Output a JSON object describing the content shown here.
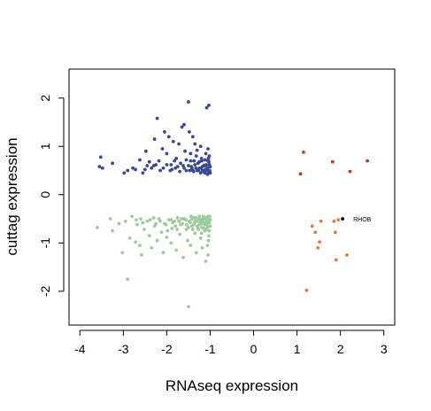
{
  "chart_data": {
    "type": "scatter",
    "title": "",
    "xlabel": "RNAseq expression",
    "ylabel": "cuttag expression",
    "xlim": [
      -4.25,
      3.25
    ],
    "ylim": [
      -2.7,
      2.6
    ],
    "x_ticks": [
      "-4",
      "-3",
      "-2",
      "-1",
      "0",
      "1",
      "2",
      "3"
    ],
    "y_ticks": [
      "-2",
      "-1",
      "0",
      "1",
      "2"
    ],
    "grid": false,
    "legend": "none",
    "series": [
      {
        "color": "#3d4693",
        "points": [
          [
            -3.52,
            0.78
          ],
          [
            -3.55,
            0.58
          ],
          [
            -3.48,
            0.55
          ],
          [
            -3.25,
            0.65
          ],
          [
            -2.98,
            0.45
          ],
          [
            -2.9,
            0.5
          ],
          [
            -2.78,
            0.55
          ],
          [
            -2.72,
            0.52
          ],
          [
            -2.62,
            0.72
          ],
          [
            -2.55,
            0.45
          ],
          [
            -2.48,
            0.9
          ],
          [
            -2.45,
            0.6
          ],
          [
            -2.4,
            0.68
          ],
          [
            -2.35,
            0.55
          ],
          [
            -2.3,
            0.6
          ],
          [
            -2.28,
            1.15
          ],
          [
            -2.22,
            1.58
          ],
          [
            -2.15,
            0.5
          ],
          [
            -2.1,
            0.95
          ],
          [
            -2.05,
            1.3
          ],
          [
            -2.0,
            0.85
          ],
          [
            -1.95,
            1.2
          ],
          [
            -1.92,
            0.5
          ],
          [
            -1.9,
            0.62
          ],
          [
            -1.85,
            1.1
          ],
          [
            -1.8,
            0.55
          ],
          [
            -1.78,
            0.75
          ],
          [
            -1.72,
            1.05
          ],
          [
            -1.7,
            0.48
          ],
          [
            -1.65,
            1.4
          ],
          [
            -1.62,
            0.6
          ],
          [
            -1.6,
            1.45
          ],
          [
            -1.58,
            0.9
          ],
          [
            -1.55,
            0.5
          ],
          [
            -1.5,
            1.92
          ],
          [
            -1.48,
            1.3
          ],
          [
            -1.45,
            0.7
          ],
          [
            -1.42,
            0.55
          ],
          [
            -1.4,
            1.2
          ],
          [
            -1.38,
            0.48
          ],
          [
            -1.35,
            1.05
          ],
          [
            -1.32,
            0.8
          ],
          [
            -1.3,
            0.5
          ],
          [
            -1.28,
            0.65
          ],
          [
            -1.25,
            0.55
          ],
          [
            -1.22,
            1.0
          ],
          [
            -1.2,
            0.75
          ],
          [
            -1.18,
            0.5
          ],
          [
            -1.15,
            0.6
          ],
          [
            -1.12,
            0.45
          ],
          [
            -1.1,
            0.85
          ],
          [
            -1.08,
            1.8
          ],
          [
            -1.06,
            0.55
          ],
          [
            -1.05,
            0.7
          ],
          [
            -1.04,
            0.48
          ],
          [
            -1.03,
            1.85
          ],
          [
            -1.02,
            0.62
          ],
          [
            -1.01,
            0.5
          ],
          [
            -1.0,
            0.58
          ],
          [
            -1.0,
            0.45
          ],
          [
            -1.02,
            0.8
          ],
          [
            -1.05,
            0.95
          ],
          [
            -1.08,
            0.52
          ],
          [
            -1.1,
            0.6
          ],
          [
            -1.12,
            0.72
          ],
          [
            -1.15,
            0.5
          ],
          [
            -1.18,
            0.58
          ],
          [
            -1.22,
            0.45
          ],
          [
            -1.25,
            0.68
          ],
          [
            -1.3,
            0.92
          ],
          [
            -1.35,
            0.62
          ],
          [
            -1.4,
            0.5
          ],
          [
            -1.45,
            0.85
          ],
          [
            -1.5,
            0.6
          ],
          [
            -1.55,
            0.72
          ],
          [
            -1.6,
            0.55
          ],
          [
            -1.68,
            0.65
          ],
          [
            -1.75,
            0.58
          ],
          [
            -1.82,
            0.7
          ],
          [
            -1.88,
            0.52
          ],
          [
            -2.0,
            0.62
          ],
          [
            -2.08,
            0.55
          ],
          [
            -2.18,
            0.7
          ],
          [
            -2.25,
            0.62
          ],
          [
            -2.5,
            0.52
          ],
          [
            -1.03,
            0.68
          ],
          [
            -1.04,
            0.75
          ],
          [
            -1.06,
            0.42
          ],
          [
            -1.07,
            0.5
          ],
          [
            -1.09,
            0.62
          ],
          [
            -1.11,
            0.52
          ],
          [
            -1.13,
            0.6
          ],
          [
            -1.16,
            0.48
          ],
          [
            -1.19,
            0.7
          ],
          [
            -1.21,
            0.55
          ],
          [
            -1.27,
            0.5
          ],
          [
            -1.33,
            0.55
          ],
          [
            -1.37,
            0.7
          ],
          [
            -1.43,
            0.58
          ],
          [
            -1.47,
            0.5
          ]
        ]
      },
      {
        "color": "#9ecb9e",
        "points": [
          [
            -3.6,
            -0.68
          ],
          [
            -3.3,
            -0.5
          ],
          [
            -3.25,
            -0.75
          ],
          [
            -3.1,
            -0.6
          ],
          [
            -3.02,
            -1.2
          ],
          [
            -2.95,
            -0.55
          ],
          [
            -2.9,
            -1.75
          ],
          [
            -2.85,
            -0.9
          ],
          [
            -2.8,
            -0.45
          ],
          [
            -2.72,
            -0.98
          ],
          [
            -2.68,
            -0.62
          ],
          [
            -2.62,
            -1.05
          ],
          [
            -2.6,
            -0.5
          ],
          [
            -2.58,
            -1.25
          ],
          [
            -2.52,
            -0.72
          ],
          [
            -2.45,
            -0.55
          ],
          [
            -2.4,
            -0.85
          ],
          [
            -2.35,
            -1.1
          ],
          [
            -2.3,
            -0.48
          ],
          [
            -2.28,
            -0.65
          ],
          [
            -2.22,
            -0.95
          ],
          [
            -2.18,
            -0.5
          ],
          [
            -2.12,
            -0.78
          ],
          [
            -2.08,
            -1.2
          ],
          [
            -2.05,
            -0.6
          ],
          [
            -2.0,
            -0.88
          ],
          [
            -1.95,
            -0.52
          ],
          [
            -1.9,
            -1.0
          ],
          [
            -1.88,
            -0.7
          ],
          [
            -1.82,
            -0.55
          ],
          [
            -1.78,
            -1.15
          ],
          [
            -1.75,
            -0.48
          ],
          [
            -1.7,
            -0.82
          ],
          [
            -1.68,
            -0.62
          ],
          [
            -1.62,
            -1.3
          ],
          [
            -1.6,
            -0.5
          ],
          [
            -1.55,
            -0.72
          ],
          [
            -1.52,
            -0.95
          ],
          [
            -1.5,
            -2.32
          ],
          [
            -1.48,
            -0.55
          ],
          [
            -1.45,
            -1.05
          ],
          [
            -1.42,
            -0.65
          ],
          [
            -1.38,
            -0.48
          ],
          [
            -1.35,
            -0.8
          ],
          [
            -1.32,
            -1.2
          ],
          [
            -1.3,
            -0.55
          ],
          [
            -1.28,
            -0.7
          ],
          [
            -1.25,
            -0.45
          ],
          [
            -1.22,
            -0.9
          ],
          [
            -1.2,
            -0.6
          ],
          [
            -1.18,
            -1.1
          ],
          [
            -1.15,
            -0.5
          ],
          [
            -1.12,
            -0.75
          ],
          [
            -1.1,
            -1.38
          ],
          [
            -1.08,
            -0.55
          ],
          [
            -1.06,
            -0.68
          ],
          [
            -1.05,
            -1.25
          ],
          [
            -1.04,
            -0.48
          ],
          [
            -1.03,
            -0.85
          ],
          [
            -1.02,
            -0.58
          ],
          [
            -1.01,
            -0.45
          ],
          [
            -1.0,
            -0.65
          ],
          [
            -1.0,
            -0.52
          ],
          [
            -1.02,
            -0.75
          ],
          [
            -1.04,
            -0.95
          ],
          [
            -1.06,
            -1.05
          ],
          [
            -1.08,
            -0.62
          ],
          [
            -1.1,
            -0.5
          ],
          [
            -1.12,
            -0.58
          ],
          [
            -1.14,
            -0.7
          ],
          [
            -1.16,
            -0.45
          ],
          [
            -1.18,
            -0.55
          ],
          [
            -1.2,
            -0.8
          ],
          [
            -1.22,
            -0.52
          ],
          [
            -1.24,
            -0.62
          ],
          [
            -1.26,
            -0.5
          ],
          [
            -1.3,
            -0.65
          ],
          [
            -1.34,
            -0.55
          ],
          [
            -1.38,
            -0.62
          ],
          [
            -1.42,
            -0.5
          ],
          [
            -1.46,
            -0.58
          ],
          [
            -1.5,
            -0.68
          ],
          [
            -1.56,
            -0.52
          ],
          [
            -1.64,
            -0.6
          ],
          [
            -1.72,
            -0.55
          ],
          [
            -1.8,
            -0.65
          ],
          [
            -1.9,
            -0.52
          ],
          [
            -2.02,
            -0.62
          ],
          [
            -2.15,
            -0.55
          ],
          [
            -2.25,
            -0.6
          ],
          [
            -2.38,
            -0.52
          ],
          [
            -2.55,
            -0.58
          ],
          [
            -2.7,
            -0.52
          ],
          [
            -1.03,
            -0.55
          ],
          [
            -1.05,
            -0.45
          ],
          [
            -1.07,
            -0.6
          ],
          [
            -1.09,
            -0.72
          ],
          [
            -1.11,
            -0.48
          ],
          [
            -1.13,
            -0.62
          ],
          [
            -1.17,
            -0.5
          ],
          [
            -1.19,
            -0.68
          ],
          [
            -1.23,
            -0.58
          ],
          [
            -1.27,
            -0.72
          ],
          [
            -1.33,
            -0.48
          ],
          [
            -1.36,
            -0.58
          ],
          [
            -1.4,
            -0.72
          ],
          [
            -1.44,
            -0.45
          ],
          [
            -1.54,
            -0.62
          ],
          [
            -1.66,
            -0.5
          ],
          [
            -1.76,
            -0.72
          ],
          [
            -1.86,
            -0.58
          ],
          [
            -1.98,
            -0.75
          ]
        ]
      },
      {
        "color": "#c0392b",
        "points": [
          [
            1.15,
            0.88
          ],
          [
            1.08,
            0.43
          ],
          [
            1.82,
            0.68
          ],
          [
            2.22,
            0.48
          ],
          [
            2.62,
            0.7
          ]
        ]
      },
      {
        "color": "#e07b39",
        "points": [
          [
            1.35,
            -0.65
          ],
          [
            1.42,
            -0.78
          ],
          [
            1.55,
            -0.55
          ],
          [
            1.52,
            -0.98
          ],
          [
            1.48,
            -1.1
          ],
          [
            1.85,
            -0.55
          ],
          [
            1.88,
            -0.78
          ],
          [
            1.9,
            -1.35
          ],
          [
            2.15,
            -1.25
          ],
          [
            1.95,
            -0.52
          ],
          [
            1.22,
            -1.98
          ]
        ]
      },
      {
        "color": "#000000",
        "points": [
          [
            2.05,
            -0.5
          ]
        ]
      }
    ],
    "annotations": [
      {
        "text": "RHOB",
        "x": 2.05,
        "y": -0.5
      }
    ]
  }
}
